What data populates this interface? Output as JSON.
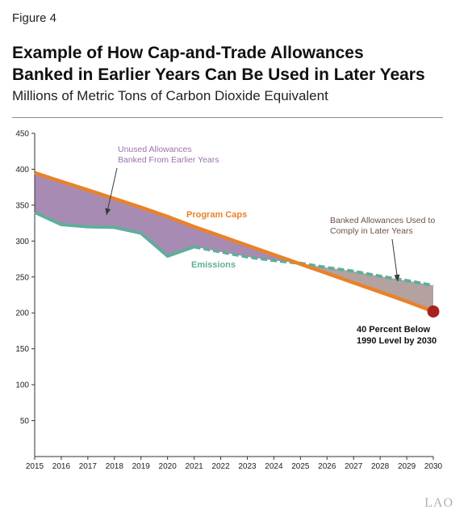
{
  "figure_label": "Figure 4",
  "title_line1": "Example of How Cap-and-Trade Allowances",
  "title_line2": "Banked in Earlier Years Can Be Used in Later Years",
  "subtitle": "Millions of Metric Tons of Carbon Dioxide Equivalent",
  "logo_text": "LAO",
  "colors": {
    "cap": "#e8822a",
    "emissions": "#5fae9a",
    "banked_fill": "#a88bb3",
    "used_fill": "#b3a2a0",
    "endpoint": "#a8231f",
    "unused_label": "#9a73a8",
    "used_label": "#6b5248",
    "axis": "#333333"
  },
  "chart_data": {
    "type": "line",
    "title": "Example of How Cap-and-Trade Allowances Banked in Earlier Years Can Be Used in Later Years",
    "subtitle": "Millions of Metric Tons of Carbon Dioxide Equivalent",
    "xlabel": "",
    "ylabel": "",
    "x": [
      2015,
      2016,
      2017,
      2018,
      2019,
      2020,
      2021,
      2022,
      2023,
      2024,
      2025,
      2026,
      2027,
      2028,
      2029,
      2030
    ],
    "ylim": [
      0,
      450
    ],
    "yticks": [
      50,
      100,
      150,
      200,
      250,
      300,
      350,
      400,
      450
    ],
    "grid": false,
    "series": [
      {
        "name": "Program Caps",
        "values": [
          395,
          383,
          371,
          359,
          347,
          334,
          320,
          307,
          294,
          281,
          268,
          255,
          242,
          229,
          216,
          202
        ]
      },
      {
        "name": "Emissions",
        "values": [
          340,
          323,
          320,
          319,
          311,
          279,
          292,
          285,
          278,
          273,
          269,
          263,
          258,
          251,
          245,
          238
        ],
        "dashed_from": 2021
      }
    ],
    "annotations": {
      "unused_line1": "Unused Allowances",
      "unused_line2": "Banked From Earlier Years",
      "used_line1": "Banked Allowances Used to",
      "used_line2": "Comply in Later Years",
      "cap_label": "Program Caps",
      "emissions_label": "Emissions",
      "target_line1": "40 Percent Below",
      "target_line2": "1990 Level by 2030"
    }
  }
}
